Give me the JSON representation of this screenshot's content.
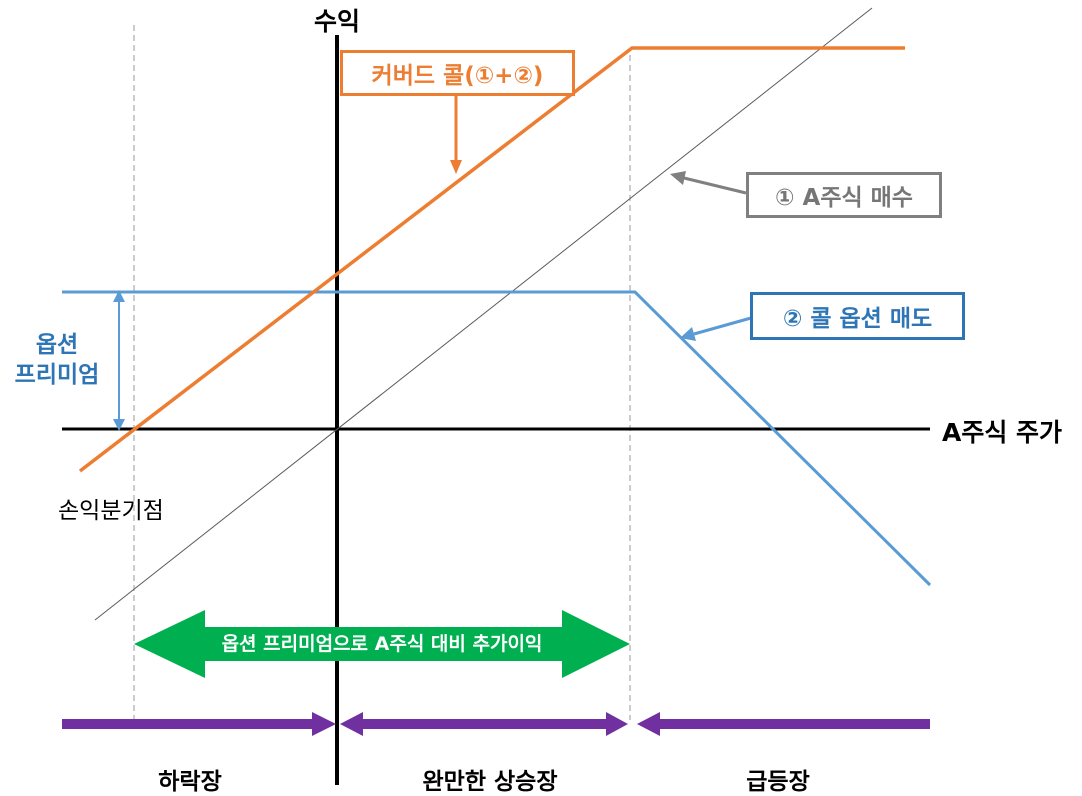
{
  "axes": {
    "y_label": "수익",
    "x_label": "A주식 주가"
  },
  "annotations": {
    "covered_call": "커버드 콜(①+②)",
    "stock_buy": "① A주식 매수",
    "call_sell": "② 콜 옵션 매도",
    "premium": "옵션\n프리미엄",
    "breakeven": "손익분기점",
    "extra_income": "옵션 프리미엄으로 A주식 대비 추가이익"
  },
  "markets": {
    "bear": "하락장",
    "mild_bull": "완만한 상승장",
    "bull": "급등장"
  },
  "colors": {
    "covered_call": "#ED7D31",
    "stock": "#808080",
    "call": "#5B9BD5",
    "call_box": "#2E75B6",
    "green": "#00B050",
    "purple": "#7030A0"
  }
}
